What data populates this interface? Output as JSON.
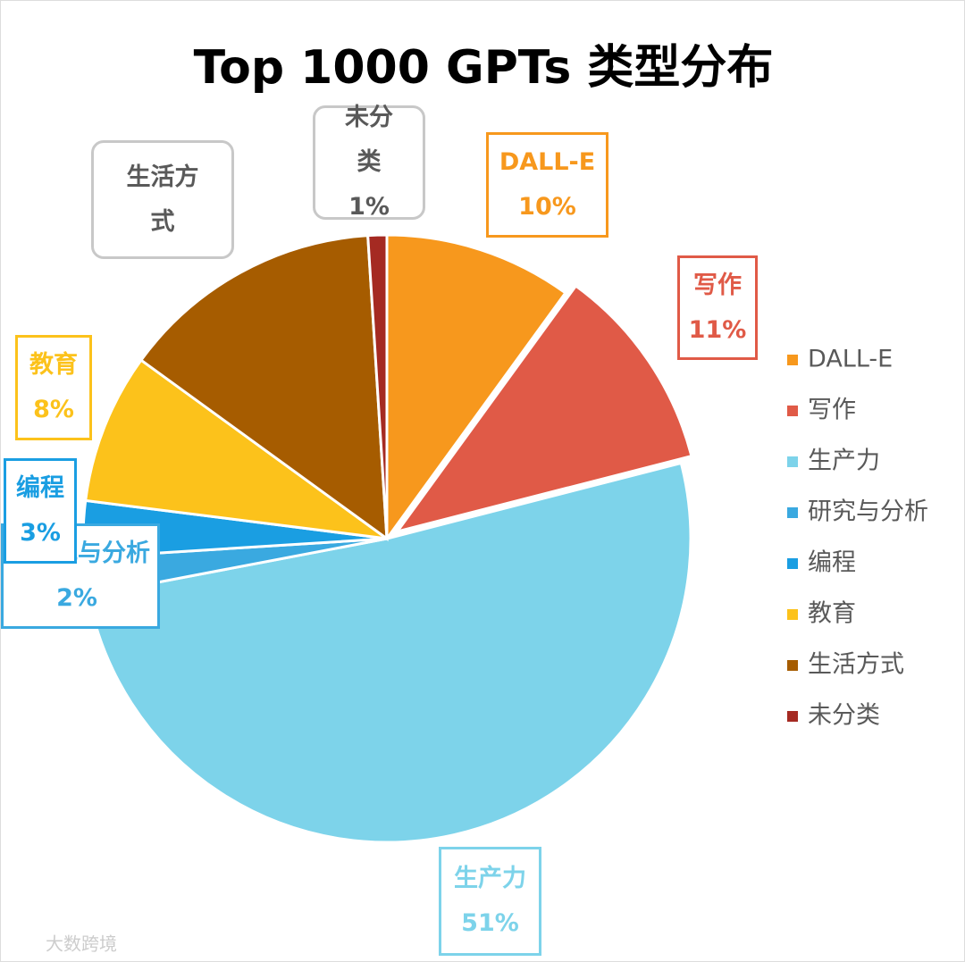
{
  "chart_data": {
    "type": "pie",
    "title": "Top 1000 GPTs 类型分布",
    "categories": [
      "DALL-E",
      "写作",
      "生产力",
      "研究与分析",
      "编程",
      "教育",
      "生活方式",
      "未分类"
    ],
    "values": [
      10,
      11,
      51,
      2,
      3,
      8,
      14,
      1
    ],
    "value_labels": [
      "10%",
      "11%",
      "51%",
      "2%",
      "3%",
      "8%",
      null,
      "1%"
    ],
    "colors": [
      "#f7981d",
      "#e05a47",
      "#7dd3ea",
      "#3aa9e0",
      "#1a9ee2",
      "#fcc21b",
      "#a65c00",
      "#a52a22"
    ],
    "legend": "right",
    "watermark": "大数跨境"
  }
}
